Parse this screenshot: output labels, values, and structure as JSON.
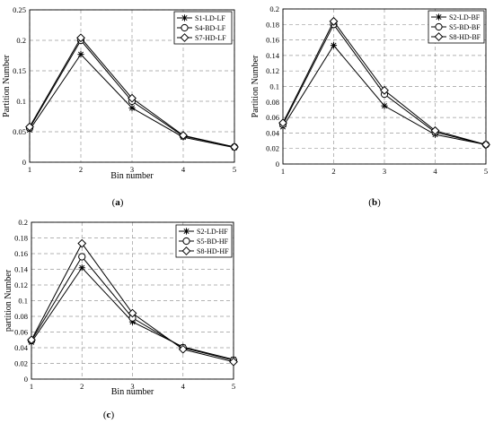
{
  "chart_data": [
    {
      "type": "line",
      "caption": "(a)",
      "xlabel": "Bin number",
      "ylabel": "Partition Number",
      "x": [
        1,
        2,
        3,
        4,
        5
      ],
      "xlim": [
        1,
        5
      ],
      "ylim": [
        0,
        0.25
      ],
      "yticks": [
        0,
        0.05,
        0.1,
        0.15,
        0.2,
        0.25
      ],
      "ytick_labels": [
        "0",
        "0.05",
        "0.1",
        "0.15",
        "0.2",
        "0.25"
      ],
      "xticks": [
        1,
        2,
        3,
        4,
        5
      ],
      "grid": true,
      "legend_position": "top-right",
      "series": [
        {
          "name": "S1-LD-LF",
          "marker": "star",
          "values": [
            0.053,
            0.177,
            0.089,
            0.041,
            0.024
          ]
        },
        {
          "name": "S4-BD-LF",
          "marker": "circle",
          "values": [
            0.056,
            0.2,
            0.1,
            0.043,
            0.025
          ]
        },
        {
          "name": "S7-HD-LF",
          "marker": "diamond",
          "values": [
            0.058,
            0.204,
            0.105,
            0.044,
            0.025
          ]
        }
      ]
    },
    {
      "type": "line",
      "caption": "(b)",
      "xlabel": "",
      "ylabel": "Partition Number",
      "x": [
        1,
        2,
        3,
        4,
        5
      ],
      "xlim": [
        1,
        5
      ],
      "ylim": [
        0,
        0.2
      ],
      "yticks": [
        0,
        0.02,
        0.04,
        0.06,
        0.08,
        0.1,
        0.12,
        0.14,
        0.16,
        0.18,
        0.2
      ],
      "ytick_labels": [
        "0",
        "0.02",
        "0.04",
        "0.06",
        "0.08",
        "0.1",
        "0.12",
        "0.14",
        "0.16",
        "0.18",
        "0.2"
      ],
      "xticks": [
        1,
        2,
        3,
        4,
        5
      ],
      "grid": true,
      "legend_position": "top-right",
      "series": [
        {
          "name": "S2-LD-BF",
          "marker": "star",
          "values": [
            0.048,
            0.153,
            0.075,
            0.038,
            0.025
          ]
        },
        {
          "name": "S5-BD-BF",
          "marker": "circle",
          "values": [
            0.051,
            0.18,
            0.09,
            0.041,
            0.025
          ]
        },
        {
          "name": "S8-HD-BF",
          "marker": "diamond",
          "values": [
            0.053,
            0.184,
            0.095,
            0.043,
            0.025
          ]
        }
      ]
    },
    {
      "type": "line",
      "caption": "(c)",
      "xlabel": "Bin number",
      "ylabel": "partition Number",
      "x": [
        1,
        2,
        3,
        4,
        5
      ],
      "xlim": [
        1,
        5
      ],
      "ylim": [
        0,
        0.2
      ],
      "yticks": [
        0,
        0.02,
        0.04,
        0.06,
        0.08,
        0.1,
        0.12,
        0.14,
        0.16,
        0.18,
        0.2
      ],
      "ytick_labels": [
        "0",
        "0.02",
        "0.04",
        "0.06",
        "0.08",
        "0.1",
        "0.12",
        "0.14",
        "0.16",
        "0.18",
        "0.2"
      ],
      "xticks": [
        1,
        2,
        3,
        4,
        5
      ],
      "grid": true,
      "legend_position": "top-right",
      "series": [
        {
          "name": "S2-LD-HF",
          "marker": "star",
          "values": [
            0.047,
            0.142,
            0.073,
            0.041,
            0.025
          ]
        },
        {
          "name": "S5-BD-HF",
          "marker": "circle",
          "values": [
            0.049,
            0.156,
            0.078,
            0.04,
            0.024
          ]
        },
        {
          "name": "S8-HD-HF",
          "marker": "diamond",
          "values": [
            0.05,
            0.173,
            0.084,
            0.038,
            0.022
          ]
        }
      ]
    }
  ]
}
